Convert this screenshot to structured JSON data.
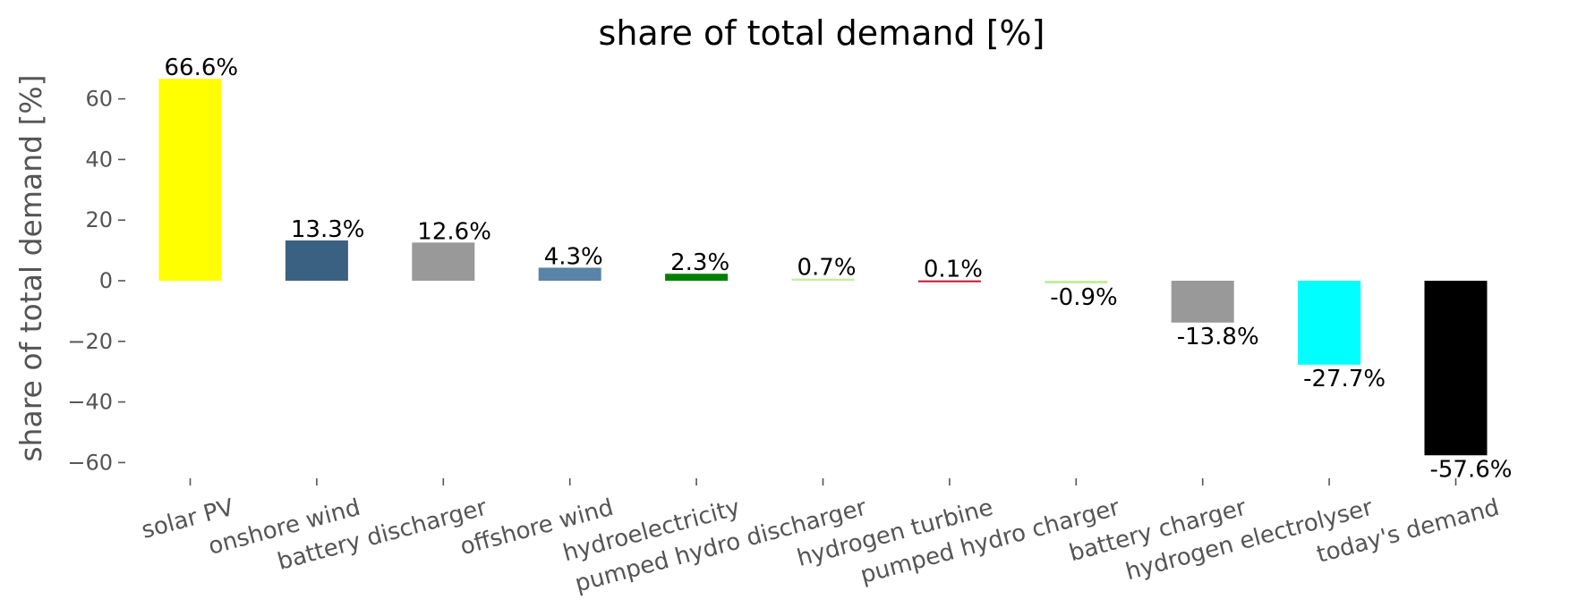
{
  "chart_data": {
    "type": "bar",
    "title": "share of total demand [%]",
    "xlabel": "",
    "ylabel": "share of total demand [%]",
    "ylim": [
      -66,
      71
    ],
    "yticks": [
      60,
      40,
      20,
      0,
      -20,
      -40,
      -60
    ],
    "ytick_labels": [
      "60",
      "40",
      "20",
      "0",
      "−20",
      "−40",
      "−60"
    ],
    "grid": false,
    "categories": [
      "solar PV",
      "onshore wind",
      "battery discharger",
      "offshore wind",
      "hydroelectricity",
      "pumped hydro discharger",
      "hydrogen turbine",
      "pumped hydro charger",
      "battery charger",
      "hydrogen electrolyser",
      "today's demand"
    ],
    "values": [
      66.6,
      13.3,
      12.6,
      4.3,
      2.3,
      0.7,
      0.1,
      -0.9,
      -13.8,
      -27.7,
      -57.6
    ],
    "data_labels": [
      "66.6%",
      "13.3%",
      "12.6%",
      "4.3%",
      "2.3%",
      "0.7%",
      "0.1%",
      "-0.9%",
      "-13.8%",
      "-27.7%",
      "-57.6%"
    ],
    "colors": [
      "#ffff00",
      "#3b6182",
      "#999999",
      "#5984a6",
      "#008000",
      "#c8ecA0",
      "#c8102e",
      "#c8ecA0",
      "#999999",
      "#00ffff",
      "#000000"
    ]
  }
}
